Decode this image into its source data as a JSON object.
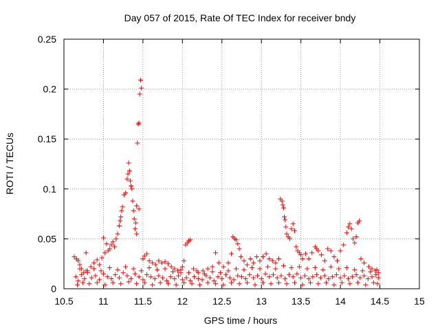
{
  "chart_data": {
    "type": "scatter",
    "title": "Day 057 of 2015, Rate Of TEC Index for receiver bndy",
    "xlabel": "GPS time / hours",
    "ylabel": "ROTI / TECUs",
    "xlim": [
      10.5,
      15
    ],
    "ylim": [
      0,
      0.25
    ],
    "xticks": [
      10.5,
      11,
      11.5,
      12,
      12.5,
      13,
      13.5,
      14,
      14.5,
      15
    ],
    "xtick_labels": [
      "10.5",
      "11",
      "11.5",
      "12",
      "12.5",
      "13",
      "13.5",
      "14",
      "14.5",
      "15"
    ],
    "yticks": [
      0,
      0.05,
      0.1,
      0.15,
      0.2,
      0.25
    ],
    "ytick_labels": [
      "0",
      "0.05",
      "0.1",
      "0.15",
      "0.2",
      "0.25"
    ],
    "grid": true,
    "marker": "plus",
    "color": "#ff0000",
    "series": [
      {
        "name": "ROTI",
        "points": [
          [
            10.63,
            0.032
          ],
          [
            10.66,
            0.03
          ],
          [
            10.68,
            0.028
          ],
          [
            10.7,
            0.024
          ],
          [
            10.72,
            0.02
          ],
          [
            10.75,
            0.016
          ],
          [
            10.78,
            0.036
          ],
          [
            10.8,
            0.018
          ],
          [
            10.84,
            0.022
          ],
          [
            10.88,
            0.026
          ],
          [
            10.92,
            0.029
          ],
          [
            10.95,
            0.024
          ],
          [
            10.98,
            0.031
          ],
          [
            11.0,
            0.051
          ],
          [
            11.02,
            0.036
          ],
          [
            11.04,
            0.045
          ],
          [
            11.06,
            0.038
          ],
          [
            11.08,
            0.04
          ],
          [
            11.1,
            0.044
          ],
          [
            11.12,
            0.047
          ],
          [
            11.14,
            0.042
          ],
          [
            11.16,
            0.05
          ],
          [
            11.18,
            0.055
          ],
          [
            11.2,
            0.063
          ],
          [
            11.21,
            0.068
          ],
          [
            11.22,
            0.072
          ],
          [
            11.23,
            0.078
          ],
          [
            11.24,
            0.082
          ],
          [
            11.26,
            0.094
          ],
          [
            11.28,
            0.096
          ],
          [
            11.3,
            0.11
          ],
          [
            11.31,
            0.115
          ],
          [
            11.32,
            0.126
          ],
          [
            11.33,
            0.118
          ],
          [
            11.34,
            0.108
          ],
          [
            11.35,
            0.103
          ],
          [
            11.36,
            0.1
          ],
          [
            11.37,
            0.088
          ],
          [
            11.38,
            0.078
          ],
          [
            11.39,
            0.07
          ],
          [
            11.4,
            0.06
          ],
          [
            11.41,
            0.066
          ],
          [
            11.42,
            0.083
          ],
          [
            11.43,
            0.146
          ],
          [
            11.44,
            0.165
          ],
          [
            11.45,
            0.166
          ],
          [
            11.46,
            0.195
          ],
          [
            11.47,
            0.209
          ],
          [
            11.48,
            0.201
          ],
          [
            11.45,
            0.08
          ],
          [
            11.42,
            0.055
          ],
          [
            11.5,
            0.03
          ],
          [
            11.52,
            0.033
          ],
          [
            11.55,
            0.035
          ],
          [
            11.58,
            0.028
          ],
          [
            11.62,
            0.026
          ],
          [
            11.66,
            0.024
          ],
          [
            11.7,
            0.028
          ],
          [
            11.74,
            0.026
          ],
          [
            11.78,
            0.027
          ],
          [
            11.82,
            0.025
          ],
          [
            11.86,
            0.022
          ],
          [
            11.9,
            0.02
          ],
          [
            11.94,
            0.018
          ],
          [
            11.98,
            0.016
          ],
          [
            12.0,
            0.022
          ],
          [
            12.02,
            0.028
          ],
          [
            12.04,
            0.044
          ],
          [
            12.06,
            0.046
          ],
          [
            12.08,
            0.048
          ],
          [
            12.1,
            0.049
          ],
          [
            12.14,
            0.02
          ],
          [
            12.2,
            0.016
          ],
          [
            12.26,
            0.018
          ],
          [
            12.32,
            0.02
          ],
          [
            12.38,
            0.022
          ],
          [
            12.42,
            0.036
          ],
          [
            12.46,
            0.026
          ],
          [
            12.52,
            0.022
          ],
          [
            12.58,
            0.026
          ],
          [
            12.62,
            0.035
          ],
          [
            12.64,
            0.052
          ],
          [
            12.66,
            0.05
          ],
          [
            12.68,
            0.049
          ],
          [
            12.7,
            0.045
          ],
          [
            12.72,
            0.04
          ],
          [
            12.74,
            0.032
          ],
          [
            12.78,
            0.028
          ],
          [
            12.82,
            0.024
          ],
          [
            12.86,
            0.03
          ],
          [
            12.9,
            0.026
          ],
          [
            12.94,
            0.032
          ],
          [
            12.98,
            0.028
          ],
          [
            13.02,
            0.032
          ],
          [
            13.06,
            0.035
          ],
          [
            13.1,
            0.03
          ],
          [
            13.14,
            0.028
          ],
          [
            13.18,
            0.026
          ],
          [
            13.22,
            0.03
          ],
          [
            13.24,
            0.09
          ],
          [
            13.26,
            0.088
          ],
          [
            13.27,
            0.084
          ],
          [
            13.28,
            0.081
          ],
          [
            13.29,
            0.072
          ],
          [
            13.3,
            0.069
          ],
          [
            13.31,
            0.062
          ],
          [
            13.32,
            0.055
          ],
          [
            13.34,
            0.052
          ],
          [
            13.36,
            0.05
          ],
          [
            13.38,
            0.06
          ],
          [
            13.4,
            0.065
          ],
          [
            13.42,
            0.058
          ],
          [
            13.44,
            0.042
          ],
          [
            13.46,
            0.038
          ],
          [
            13.48,
            0.036
          ],
          [
            13.5,
            0.034
          ],
          [
            13.52,
            0.03
          ],
          [
            13.56,
            0.035
          ],
          [
            13.6,
            0.03
          ],
          [
            13.64,
            0.036
          ],
          [
            13.68,
            0.042
          ],
          [
            13.7,
            0.04
          ],
          [
            13.72,
            0.038
          ],
          [
            13.76,
            0.034
          ],
          [
            13.8,
            0.028
          ],
          [
            13.84,
            0.04
          ],
          [
            13.88,
            0.038
          ],
          [
            13.92,
            0.032
          ],
          [
            13.96,
            0.028
          ],
          [
            14.0,
            0.038
          ],
          [
            14.04,
            0.044
          ],
          [
            14.08,
            0.056
          ],
          [
            14.1,
            0.062
          ],
          [
            14.12,
            0.065
          ],
          [
            14.14,
            0.06
          ],
          [
            14.16,
            0.05
          ],
          [
            14.18,
            0.046
          ],
          [
            14.2,
            0.052
          ],
          [
            14.22,
            0.066
          ],
          [
            14.24,
            0.068
          ],
          [
            14.26,
            0.03
          ],
          [
            14.3,
            0.026
          ],
          [
            14.36,
            0.022
          ],
          [
            14.4,
            0.02
          ],
          [
            14.44,
            0.018
          ],
          [
            14.48,
            0.016
          ],
          [
            10.65,
            0.012
          ],
          [
            10.68,
            0.008
          ],
          [
            10.72,
            0.014
          ],
          [
            10.76,
            0.01
          ],
          [
            10.8,
            0.016
          ],
          [
            10.85,
            0.011
          ],
          [
            10.9,
            0.013
          ],
          [
            10.95,
            0.009
          ],
          [
            11.0,
            0.015
          ],
          [
            11.05,
            0.012
          ],
          [
            11.1,
            0.01
          ],
          [
            11.15,
            0.014
          ],
          [
            11.2,
            0.011
          ],
          [
            11.25,
            0.016
          ],
          [
            11.3,
            0.013
          ],
          [
            11.35,
            0.01
          ],
          [
            11.4,
            0.015
          ],
          [
            11.45,
            0.012
          ],
          [
            11.5,
            0.009
          ],
          [
            11.55,
            0.014
          ],
          [
            11.6,
            0.012
          ],
          [
            11.65,
            0.01
          ],
          [
            11.7,
            0.013
          ],
          [
            11.75,
            0.011
          ],
          [
            11.8,
            0.008
          ],
          [
            11.85,
            0.012
          ],
          [
            11.9,
            0.01
          ],
          [
            11.95,
            0.013
          ],
          [
            12.0,
            0.009
          ],
          [
            12.05,
            0.011
          ],
          [
            12.1,
            0.008
          ],
          [
            12.15,
            0.012
          ],
          [
            12.2,
            0.01
          ],
          [
            12.25,
            0.009
          ],
          [
            12.3,
            0.013
          ],
          [
            12.35,
            0.011
          ],
          [
            12.4,
            0.008
          ],
          [
            12.45,
            0.012
          ],
          [
            12.5,
            0.01
          ],
          [
            12.55,
            0.014
          ],
          [
            12.6,
            0.011
          ],
          [
            12.65,
            0.009
          ],
          [
            12.7,
            0.013
          ],
          [
            12.75,
            0.012
          ],
          [
            12.8,
            0.01
          ],
          [
            12.85,
            0.014
          ],
          [
            12.9,
            0.011
          ],
          [
            12.95,
            0.013
          ],
          [
            13.0,
            0.01
          ],
          [
            13.05,
            0.015
          ],
          [
            13.1,
            0.012
          ],
          [
            13.15,
            0.014
          ],
          [
            13.2,
            0.011
          ],
          [
            13.25,
            0.013
          ],
          [
            13.3,
            0.01
          ],
          [
            13.35,
            0.014
          ],
          [
            13.4,
            0.012
          ],
          [
            13.45,
            0.015
          ],
          [
            13.5,
            0.011
          ],
          [
            13.55,
            0.013
          ],
          [
            13.6,
            0.01
          ],
          [
            13.65,
            0.012
          ],
          [
            13.7,
            0.014
          ],
          [
            13.75,
            0.011
          ],
          [
            13.8,
            0.013
          ],
          [
            13.85,
            0.01
          ],
          [
            13.9,
            0.012
          ],
          [
            13.95,
            0.014
          ],
          [
            14.0,
            0.011
          ],
          [
            14.05,
            0.013
          ],
          [
            14.1,
            0.01
          ],
          [
            14.15,
            0.012
          ],
          [
            14.2,
            0.014
          ],
          [
            14.25,
            0.011
          ],
          [
            14.3,
            0.013
          ],
          [
            14.35,
            0.01
          ],
          [
            14.4,
            0.012
          ],
          [
            14.45,
            0.014
          ],
          [
            14.48,
            0.011
          ],
          [
            10.67,
            0.004
          ],
          [
            10.74,
            0.006
          ],
          [
            10.82,
            0.005
          ],
          [
            10.92,
            0.006
          ],
          [
            11.02,
            0.004
          ],
          [
            11.12,
            0.006
          ],
          [
            11.22,
            0.005
          ],
          [
            11.32,
            0.007
          ],
          [
            11.42,
            0.005
          ],
          [
            11.52,
            0.006
          ],
          [
            11.62,
            0.004
          ],
          [
            11.72,
            0.006
          ],
          [
            11.82,
            0.005
          ],
          [
            11.92,
            0.004
          ],
          [
            12.02,
            0.006
          ],
          [
            12.12,
            0.005
          ],
          [
            12.22,
            0.004
          ],
          [
            12.32,
            0.006
          ],
          [
            12.42,
            0.005
          ],
          [
            12.52,
            0.004
          ],
          [
            12.62,
            0.006
          ],
          [
            12.72,
            0.005
          ],
          [
            12.82,
            0.006
          ],
          [
            12.92,
            0.004
          ],
          [
            13.02,
            0.006
          ],
          [
            13.12,
            0.005
          ],
          [
            13.22,
            0.006
          ],
          [
            13.32,
            0.005
          ],
          [
            13.42,
            0.006
          ],
          [
            13.52,
            0.004
          ],
          [
            13.62,
            0.006
          ],
          [
            13.72,
            0.005
          ],
          [
            13.82,
            0.006
          ],
          [
            13.92,
            0.004
          ],
          [
            14.02,
            0.006
          ],
          [
            14.12,
            0.005
          ],
          [
            14.22,
            0.006
          ],
          [
            14.32,
            0.004
          ],
          [
            14.42,
            0.006
          ],
          [
            14.47,
            0.005
          ],
          [
            10.7,
            0.02
          ],
          [
            10.78,
            0.018
          ],
          [
            10.88,
            0.02
          ],
          [
            10.97,
            0.018
          ],
          [
            11.08,
            0.021
          ],
          [
            11.18,
            0.019
          ],
          [
            11.28,
            0.022
          ],
          [
            11.38,
            0.02
          ],
          [
            11.48,
            0.018
          ],
          [
            11.58,
            0.021
          ],
          [
            11.68,
            0.019
          ],
          [
            11.78,
            0.02
          ],
          [
            11.88,
            0.017
          ],
          [
            11.98,
            0.019
          ],
          [
            12.08,
            0.016
          ],
          [
            12.18,
            0.018
          ],
          [
            12.28,
            0.015
          ],
          [
            12.38,
            0.017
          ],
          [
            12.48,
            0.016
          ],
          [
            12.58,
            0.018
          ],
          [
            12.68,
            0.02
          ],
          [
            12.78,
            0.019
          ],
          [
            12.88,
            0.021
          ],
          [
            12.98,
            0.02
          ],
          [
            13.08,
            0.022
          ],
          [
            13.18,
            0.02
          ],
          [
            13.28,
            0.023
          ],
          [
            13.38,
            0.021
          ],
          [
            13.48,
            0.022
          ],
          [
            13.58,
            0.02
          ],
          [
            13.68,
            0.021
          ],
          [
            13.78,
            0.019
          ],
          [
            13.88,
            0.022
          ],
          [
            13.98,
            0.02
          ],
          [
            14.08,
            0.021
          ],
          [
            14.18,
            0.019
          ],
          [
            14.28,
            0.018
          ],
          [
            14.38,
            0.017
          ],
          [
            14.46,
            0.019
          ]
        ]
      }
    ]
  }
}
